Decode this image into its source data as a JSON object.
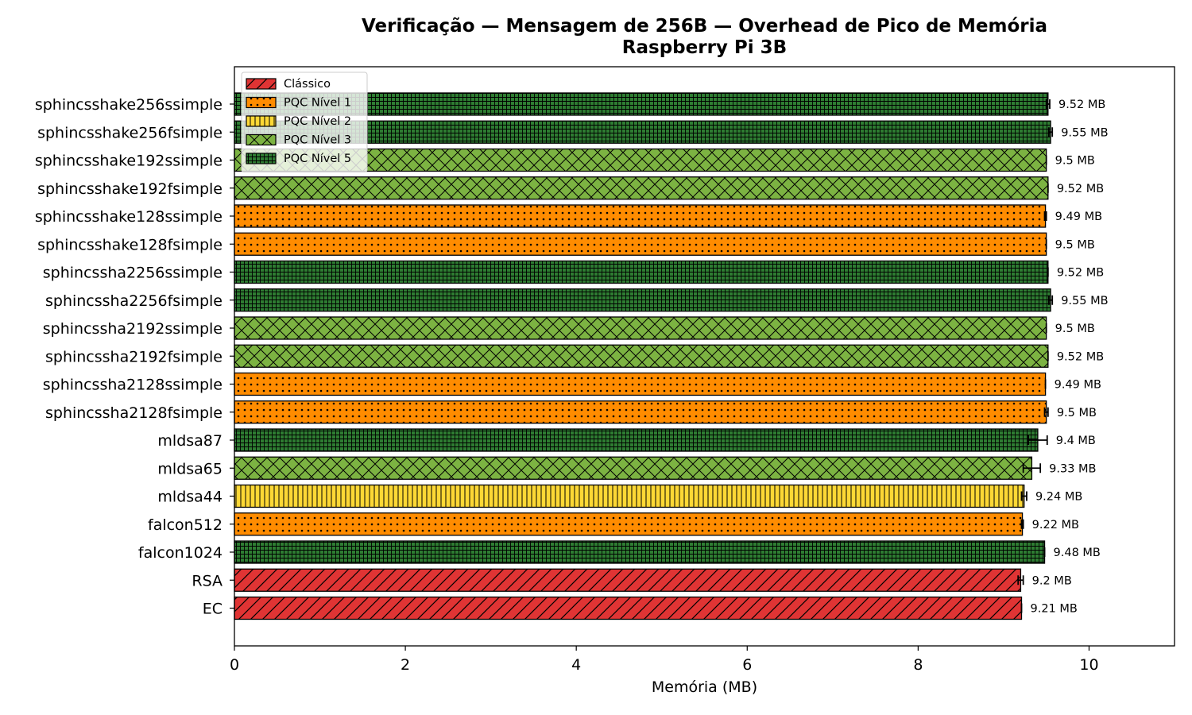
{
  "chart_data": {
    "type": "bar",
    "orientation": "horizontal",
    "title": "Verificação — Mensagem de 256B — Overhead de Pico de Memória",
    "subtitle": "Raspberry Pi 3B",
    "xlabel": "Memória (MB)",
    "ylabel": "",
    "xlim": [
      0,
      11
    ],
    "xticks": [
      0,
      2,
      4,
      6,
      8,
      10
    ],
    "grid": false,
    "legend_position": "upper-left",
    "legend": [
      {
        "label": "Clássico",
        "color": "#e03434",
        "pattern": "diag"
      },
      {
        "label": "PQC Nível 1",
        "color": "#ff8c00",
        "pattern": "dots"
      },
      {
        "label": "PQC Nível 2",
        "color": "#fdd835",
        "pattern": "vlines"
      },
      {
        "label": "PQC Nível 3",
        "color": "#7cb342",
        "pattern": "cross"
      },
      {
        "label": "PQC Nível 5",
        "color": "#2e7d32",
        "pattern": "grid"
      }
    ],
    "bars": [
      {
        "label": "sphincsshake256ssimple",
        "value": 9.52,
        "error": 0.02,
        "level": 4,
        "text": "9.52 MB"
      },
      {
        "label": "sphincsshake256fsimple",
        "value": 9.55,
        "error": 0.02,
        "level": 4,
        "text": "9.55 MB"
      },
      {
        "label": "sphincsshake192ssimple",
        "value": 9.5,
        "error": 0.0,
        "level": 3,
        "text": "9.5 MB"
      },
      {
        "label": "sphincsshake192fsimple",
        "value": 9.52,
        "error": 0.0,
        "level": 3,
        "text": "9.52 MB"
      },
      {
        "label": "sphincsshake128ssimple",
        "value": 9.49,
        "error": 0.01,
        "level": 1,
        "text": "9.49 MB"
      },
      {
        "label": "sphincsshake128fsimple",
        "value": 9.5,
        "error": 0.0,
        "level": 1,
        "text": "9.5 MB"
      },
      {
        "label": "sphincssha2256ssimple",
        "value": 9.52,
        "error": 0.0,
        "level": 4,
        "text": "9.52 MB"
      },
      {
        "label": "sphincssha2256fsimple",
        "value": 9.55,
        "error": 0.02,
        "level": 4,
        "text": "9.55 MB"
      },
      {
        "label": "sphincssha2192ssimple",
        "value": 9.5,
        "error": 0.0,
        "level": 3,
        "text": "9.5 MB"
      },
      {
        "label": "sphincssha2192fsimple",
        "value": 9.52,
        "error": 0.0,
        "level": 3,
        "text": "9.52 MB"
      },
      {
        "label": "sphincssha2128ssimple",
        "value": 9.49,
        "error": 0.0,
        "level": 1,
        "text": "9.49 MB"
      },
      {
        "label": "sphincssha2128fsimple",
        "value": 9.5,
        "error": 0.02,
        "level": 1,
        "text": "9.5 MB"
      },
      {
        "label": "mldsa87",
        "value": 9.4,
        "error": 0.11,
        "level": 4,
        "text": "9.4 MB"
      },
      {
        "label": "mldsa65",
        "value": 9.33,
        "error": 0.1,
        "level": 3,
        "text": "9.33 MB"
      },
      {
        "label": "mldsa44",
        "value": 9.24,
        "error": 0.03,
        "level": 2,
        "text": "9.24 MB"
      },
      {
        "label": "falcon512",
        "value": 9.22,
        "error": 0.01,
        "level": 1,
        "text": "9.22 MB"
      },
      {
        "label": "falcon1024",
        "value": 9.48,
        "error": 0.0,
        "level": 4,
        "text": "9.48 MB"
      },
      {
        "label": "RSA",
        "value": 9.2,
        "error": 0.03,
        "level": 0,
        "text": "9.2 MB"
      },
      {
        "label": "EC",
        "value": 9.21,
        "error": 0.0,
        "level": 0,
        "text": "9.21 MB"
      }
    ]
  }
}
